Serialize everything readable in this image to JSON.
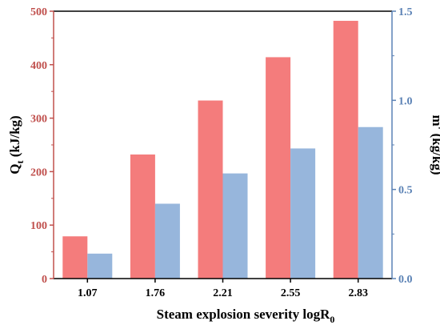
{
  "chart_data": {
    "type": "bar",
    "categories": [
      "1.07",
      "1.76",
      "2.21",
      "2.55",
      "2.83"
    ],
    "series": [
      {
        "values": [
          79,
          232,
          333,
          414,
          482
        ],
        "axis": "left",
        "color": "#f47c7c"
      },
      {
        "values": [
          0.14,
          0.42,
          0.59,
          0.73,
          0.85
        ],
        "axis": "right",
        "color": "#97b6dc"
      }
    ],
    "xlabel": {
      "main": "Steam explosion severity logR",
      "sub": "0"
    },
    "ylabel_left": {
      "main": "Q",
      "sub": "t",
      "rest": " (kJ/kg)"
    },
    "ylabel_right": "m' (kg/kg)",
    "ylim_left": [
      0,
      500
    ],
    "ylim_right": [
      0,
      1.5
    ],
    "yticks_left": [
      "0",
      "100",
      "200",
      "300",
      "400",
      "500"
    ],
    "yticks_right": [
      "0.0",
      "0.5",
      "1.0",
      "1.5"
    ],
    "left_axis_color": "#c0504d",
    "right_axis_color": "#5b82b5",
    "grid": false,
    "legend": "none"
  }
}
